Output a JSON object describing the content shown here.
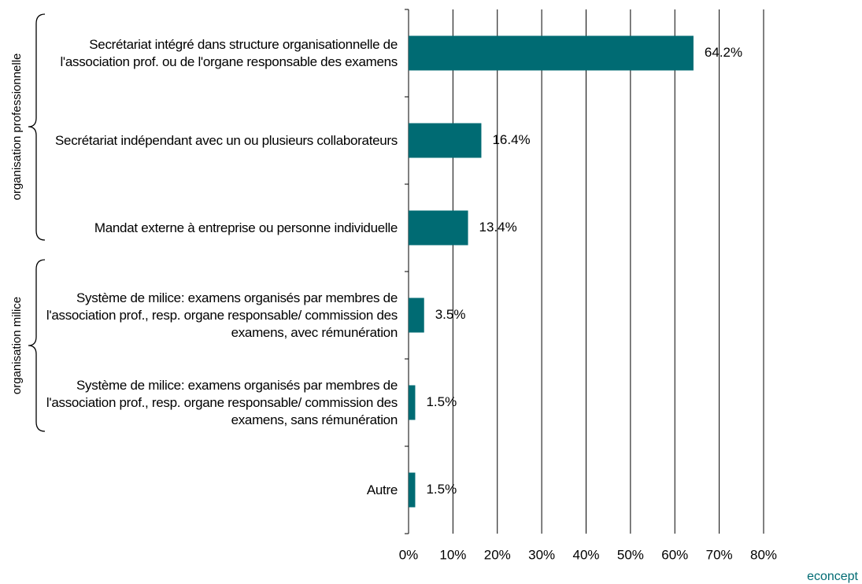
{
  "chart_data": {
    "type": "barh",
    "categories": [
      "Secrétariat intégré dans structure organisationnelle de l'association prof. ou de l'organe responsable des examens",
      "Secrétariat indépendant avec un ou plusieurs collaborateurs",
      "Mandat externe à entreprise ou personne individuelle",
      "Système de milice:  examens organisés par membres de l'association prof., resp. organe responsable/ commission des examens, avec rémunération",
      "Système de milice:  examens organisés par membres de l'association prof., resp. organe responsable/ commission des examens, sans rémunération",
      "Autre"
    ],
    "values": [
      64.2,
      16.4,
      13.4,
      3.5,
      1.5,
      1.5
    ],
    "value_labels": [
      "64.2%",
      "16.4%",
      "13.4%",
      "3.5%",
      "1.5%",
      "1.5%"
    ],
    "color": "#006b73",
    "xlim": [
      0,
      80
    ],
    "xticks": [
      {
        "value": 0,
        "label": "0%"
      },
      {
        "value": 10,
        "label": "10%"
      },
      {
        "value": 20,
        "label": "20%"
      },
      {
        "value": 30,
        "label": "30%"
      },
      {
        "value": 40,
        "label": "40%"
      },
      {
        "value": 50,
        "label": "50%"
      },
      {
        "value": 60,
        "label": "60%"
      },
      {
        "value": 70,
        "label": "70%"
      },
      {
        "value": 80,
        "label": "80%"
      }
    ],
    "grid": true,
    "groups": [
      "organisation professionnelle",
      "organisation milice"
    ],
    "footer": "econcept"
  }
}
